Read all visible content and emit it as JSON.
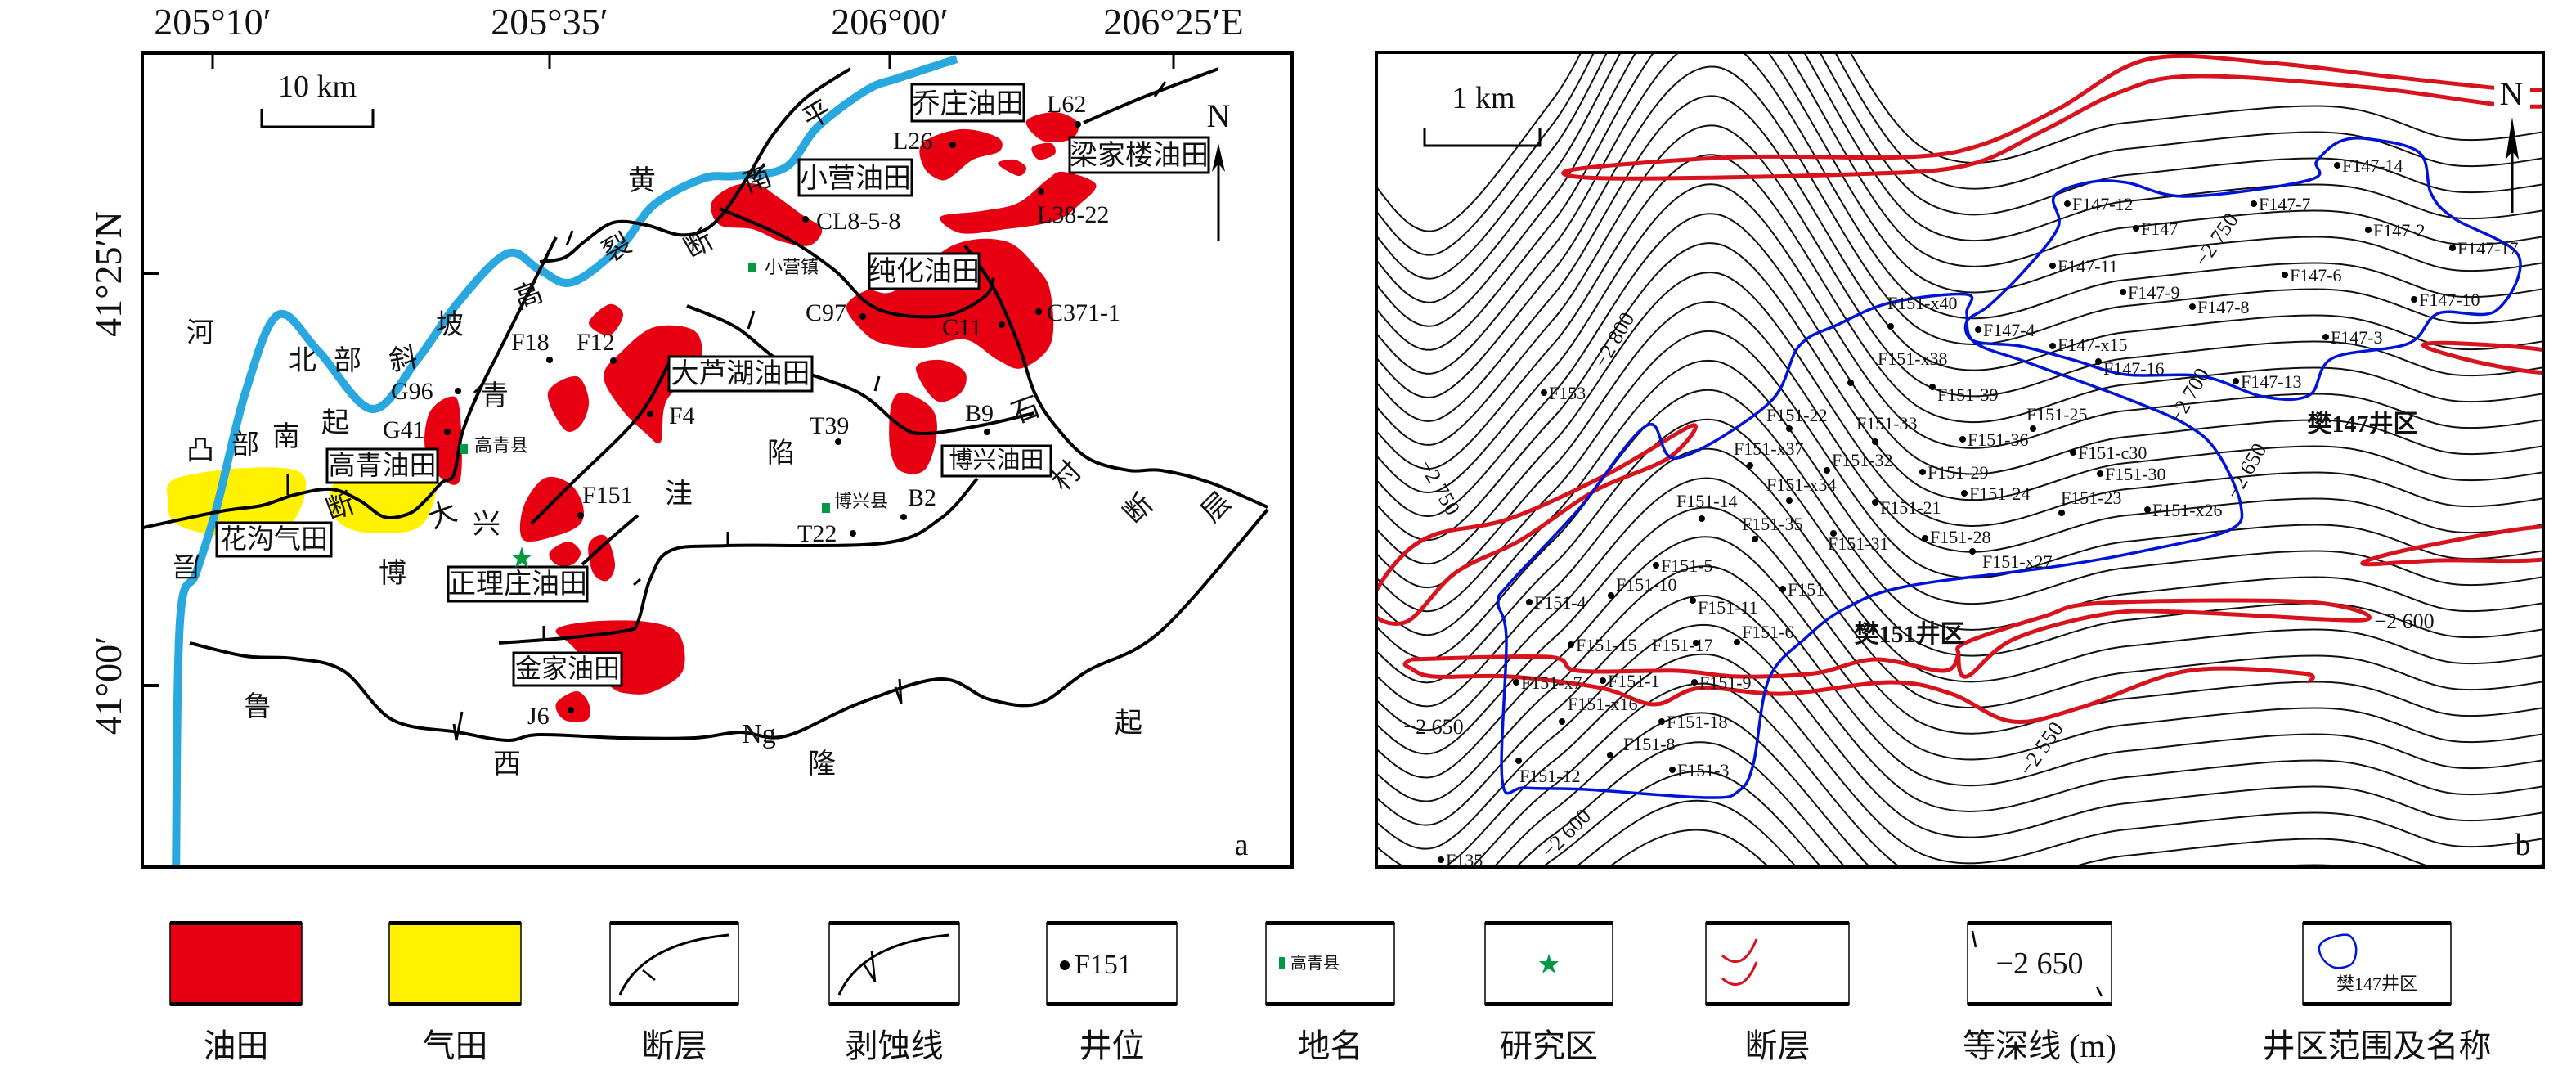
{
  "panel_a": {
    "longitude_ticks": [
      "205°10′",
      "205°35′",
      "206°00′",
      "206°25′E"
    ],
    "latitude_ticks": [
      "41°25′N",
      "41°00′"
    ],
    "scale_bar": "10 km",
    "north": "N",
    "panel_letter": "a",
    "oil_fields": [
      "乔庄油田",
      "梁家楼油田",
      "小营油田",
      "纯化油田",
      "大芦湖油田",
      "高青油田",
      "正理庄油田",
      "博兴油田",
      "金家油田"
    ],
    "gas_fields": [
      "花沟气田"
    ],
    "wells": [
      "L62",
      "L26",
      "L38-22",
      "CL8-5-8",
      "C97",
      "C11",
      "C371-1",
      "F18",
      "F12",
      "F4",
      "T39",
      "B9",
      "G96",
      "G41",
      "F151",
      "B2",
      "T22",
      "J6"
    ],
    "places": [
      "小营镇",
      "高青县",
      "博兴县"
    ],
    "region_labels": [
      "黄",
      "河",
      "北",
      "部",
      "斜",
      "坡",
      "南",
      "部",
      "凸",
      "起",
      "高",
      "青",
      "平",
      "南",
      "断",
      "裂",
      "石",
      "村",
      "断",
      "层",
      "大",
      "兴",
      "洼",
      "陷",
      "博",
      "鲁",
      "西",
      "Ng",
      "隆",
      "起",
      "层",
      "断"
    ]
  },
  "panel_b": {
    "scale_bar": "1 km",
    "north": "N",
    "panel_letter": "b",
    "well_areas": [
      "樊147井区",
      "樊151井区"
    ],
    "contour_labels": [
      "−2 800",
      "−2 750",
      "−2 700",
      "−2 750",
      "−2 650",
      "−2 600",
      "−2 650",
      "−2 550",
      "−2 600"
    ],
    "wells": [
      "F147-14",
      "F147-12",
      "F147-7",
      "F147",
      "F147-2",
      "F147-17",
      "F147-11",
      "F147-6",
      "F147-9",
      "F147-10",
      "F147-8",
      "F151-x40",
      "F147-4",
      "F147-x15",
      "F147-3",
      "F147-16",
      "F147-13",
      "F151-x38",
      "F153",
      "F151-39",
      "F151-22",
      "F151-33",
      "F151-25",
      "F151-36",
      "F151-c30",
      "F151-x37",
      "F151-32",
      "F151-29",
      "F151-30",
      "F151-x34",
      "F151-24",
      "F151-14",
      "F151-21",
      "F151-23",
      "F151-x26",
      "F151-35",
      "F151-31",
      "F151-28",
      "F151-x27",
      "F151-5",
      "F151",
      "F151-10",
      "F151-4",
      "F151-11",
      "F151-15",
      "F151-17",
      "F151-6",
      "F151-x7",
      "F151-1",
      "F151-9",
      "F151-x16",
      "F151-18",
      "F151-8",
      "F151-12",
      "F151-3",
      "F135"
    ]
  },
  "legend": {
    "items": [
      {
        "label": "油田",
        "symbol_text": ""
      },
      {
        "label": "气田",
        "symbol_text": ""
      },
      {
        "label": "断层",
        "symbol_text": ""
      },
      {
        "label": "剥蚀线",
        "symbol_text": ""
      },
      {
        "label": "井位",
        "symbol_text": "F151"
      },
      {
        "label": "地名",
        "symbol_text": "高青县"
      },
      {
        "label": "研究区",
        "symbol_text": ""
      },
      {
        "label": "断层",
        "symbol_text": ""
      },
      {
        "label": "等深线 (m)",
        "symbol_text": "−2 650"
      },
      {
        "label": "井区范围及名称",
        "symbol_text": "樊147井区"
      }
    ]
  },
  "colors": {
    "oil": "#e60012",
    "gas": "#fff100",
    "river": "#29a8e0",
    "place": "#009a44",
    "contour_label": "#1b8a3c",
    "well_area": "#0014d8",
    "fault_b": "#d7141e"
  }
}
